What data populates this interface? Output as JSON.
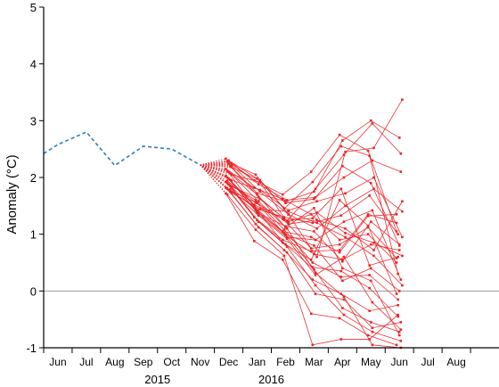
{
  "chart_data": {
    "type": "line",
    "ylabel": "Anomaly (°C)",
    "ylim": [
      -1,
      5
    ],
    "xlim": [
      -0.5,
      15.5
    ],
    "yticks": [
      -1,
      0,
      1,
      2,
      3,
      4,
      5
    ],
    "month_ticks": [
      "Jun",
      "Jul",
      "Aug",
      "Sep",
      "Oct",
      "Nov",
      "Dec",
      "Jan",
      "Feb",
      "Mar",
      "Apr",
      "May",
      "Jun",
      "Jul",
      "Aug"
    ],
    "year_labels": [
      {
        "label": "2015",
        "x": 3.5
      },
      {
        "label": "2016",
        "x": 7.5
      }
    ],
    "zero_line": 0,
    "grid": false,
    "colors": {
      "observed": "#2a7fc2",
      "forecast": "#e8262a",
      "zero_line": "#9a9a9a",
      "axis": "#000000"
    },
    "observed": {
      "x": [
        -0.5,
        0,
        1,
        2,
        3,
        4,
        5
      ],
      "y": [
        2.42,
        2.58,
        2.8,
        2.21,
        2.55,
        2.5,
        2.22
      ]
    },
    "forecasts": [
      [
        2.33,
        1.95,
        1.7,
        2.1,
        2.75,
        2.47,
        1.05
      ],
      [
        2.28,
        2.05,
        1.45,
        1.92,
        2.55,
        2.38,
        0.3
      ],
      [
        2.24,
        1.72,
        1.58,
        1.75,
        2.65,
        3.0,
        2.7
      ],
      [
        2.2,
        1.66,
        1.23,
        1.8,
        2.4,
        2.95,
        2.42
      ],
      [
        2.18,
        1.95,
        1.35,
        0.6,
        2.45,
        2.52,
        3.37
      ],
      [
        2.15,
        1.82,
        1.62,
        1.35,
        0.9,
        1.0,
        0.5
      ],
      [
        2.12,
        1.45,
        1.3,
        1.2,
        1.33,
        1.68,
        1.0
      ],
      [
        2.1,
        1.7,
        1.12,
        1.46,
        0.4,
        0.18,
        -0.78
      ],
      [
        2.08,
        1.58,
        1.1,
        0.32,
        -0.1,
        -0.95,
        -1.0
      ],
      [
        2.05,
        1.92,
        1.18,
        1.25,
        1.1,
        0.72,
        1.58
      ],
      [
        2.03,
        1.52,
        1.27,
        0.75,
        0.82,
        1.12,
        0.58
      ],
      [
        2.0,
        1.42,
        1.02,
        0.42,
        0.35,
        0.05,
        -0.45
      ],
      [
        1.98,
        1.38,
        1.14,
        1.05,
        0.52,
        1.22,
        0.82
      ],
      [
        1.96,
        1.35,
        0.95,
        0.9,
        1.22,
        1.42,
        0.2
      ],
      [
        1.95,
        1.78,
        1.42,
        1.58,
        1.72,
        2.0,
        0.95
      ],
      [
        1.92,
        1.3,
        0.9,
        0.7,
        0.72,
        1.35,
        1.2
      ],
      [
        1.9,
        1.6,
        1.08,
        0.5,
        0.25,
        0.28,
        -0.15
      ],
      [
        1.88,
        1.25,
        0.82,
        0.38,
        -0.3,
        -0.55,
        -0.72
      ],
      [
        1.86,
        1.22,
        0.78,
        0.1,
        -0.42,
        -0.72,
        -0.88
      ],
      [
        1.84,
        1.62,
        1.22,
        1.38,
        1.02,
        0.85,
        0.62
      ],
      [
        1.82,
        1.48,
        1.05,
        0.95,
        0.68,
        1.32,
        1.35
      ],
      [
        1.8,
        1.18,
        0.72,
        0.2,
        -0.05,
        -0.35,
        -0.25
      ],
      [
        1.78,
        1.55,
        0.98,
        0.65,
        0.55,
        0.82,
        0.72
      ],
      [
        1.75,
        1.12,
        0.68,
        -0.05,
        -0.15,
        -0.65,
        -0.55
      ],
      [
        1.73,
        1.44,
        1.4,
        1.2,
        0.95,
        0.62,
        0.1
      ],
      [
        1.72,
        0.88,
        0.55,
        -0.4,
        -0.48,
        -0.78,
        -0.95
      ],
      [
        1.7,
        1.08,
        0.62,
        -0.95,
        -0.85,
        -0.85,
        -0.42
      ],
      [
        2.3,
        1.98,
        1.55,
        1.62,
        2.2,
        1.9,
        0.8
      ],
      [
        2.26,
        1.88,
        1.6,
        1.65,
        2.0,
        2.3,
        2.1
      ],
      [
        2.22,
        1.75,
        1.35,
        1.1,
        1.5,
        1.8,
        1.4
      ],
      [
        2.02,
        1.5,
        0.85,
        0.55,
        1.6,
        1.15,
        -0.05
      ],
      [
        1.94,
        1.56,
        1.25,
        1.28,
        1.8,
        0.45,
        0.6
      ],
      [
        1.88,
        1.4,
        1.0,
        0.8,
        0.18,
        0.4,
        0.0
      ],
      [
        1.79,
        1.33,
        0.92,
        0.28,
        0.6,
        -0.2,
        -0.68
      ]
    ]
  }
}
